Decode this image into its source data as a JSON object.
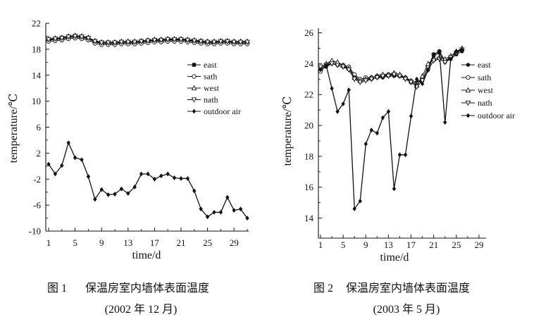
{
  "figures": [
    {
      "caption_label": "图 1",
      "caption_text": "保温房室内墙体表面温度",
      "caption_date": "(2002 年 12 月)"
    },
    {
      "caption_label": "图 2",
      "caption_text": "保温房室内墙体表面温度",
      "caption_date": "(2003 年 5 月)"
    }
  ],
  "chart_data": [
    {
      "type": "line",
      "xlabel": "time/d",
      "ylabel": "temperature/℃",
      "xlim": [
        1,
        31
      ],
      "ylim": [
        -10,
        22
      ],
      "xticks": [
        1,
        5,
        9,
        13,
        17,
        21,
        25,
        29
      ],
      "yticks": [
        22,
        18,
        14,
        10,
        6,
        2,
        -2,
        -6,
        -10
      ],
      "grid": false,
      "legend_position": "right",
      "line_color": "#111111",
      "x": [
        1,
        2,
        3,
        4,
        5,
        6,
        7,
        8,
        9,
        10,
        11,
        12,
        13,
        14,
        15,
        16,
        17,
        18,
        19,
        20,
        21,
        22,
        23,
        24,
        25,
        26,
        27,
        28,
        29,
        30,
        31
      ],
      "series": [
        {
          "name": "east",
          "marker": "square-filled",
          "values": [
            19.4,
            19.5,
            19.6,
            19.8,
            19.9,
            19.8,
            19.6,
            19.1,
            18.9,
            18.9,
            18.9,
            19.0,
            19.0,
            19.0,
            19.1,
            19.2,
            19.3,
            19.3,
            19.4,
            19.4,
            19.4,
            19.3,
            19.2,
            19.1,
            19.0,
            19.0,
            19.1,
            19.1,
            19.0,
            19.0,
            19.0
          ]
        },
        {
          "name": "sath",
          "marker": "circle-open",
          "values": [
            19.2,
            19.3,
            19.4,
            19.6,
            19.7,
            19.6,
            19.4,
            18.9,
            18.7,
            18.7,
            18.7,
            18.8,
            18.8,
            18.8,
            18.9,
            19.0,
            19.1,
            19.1,
            19.2,
            19.2,
            19.2,
            19.1,
            19.0,
            18.9,
            18.8,
            18.8,
            18.9,
            18.9,
            18.8,
            18.8,
            18.8
          ]
        },
        {
          "name": "west",
          "marker": "triangle-up-open",
          "values": [
            19.6,
            19.7,
            19.8,
            20.0,
            20.1,
            20.0,
            19.8,
            19.3,
            19.1,
            19.1,
            19.1,
            19.2,
            19.2,
            19.2,
            19.3,
            19.4,
            19.5,
            19.5,
            19.6,
            19.6,
            19.6,
            19.5,
            19.4,
            19.3,
            19.2,
            19.2,
            19.3,
            19.3,
            19.2,
            19.2,
            19.2
          ]
        },
        {
          "name": "nath",
          "marker": "triangle-down-open",
          "values": [
            19.5,
            19.6,
            19.7,
            19.9,
            20.0,
            19.9,
            19.7,
            19.2,
            19.0,
            19.0,
            19.0,
            19.1,
            19.1,
            19.1,
            19.2,
            19.3,
            19.4,
            19.4,
            19.5,
            19.5,
            19.5,
            19.4,
            19.3,
            19.2,
            19.1,
            19.1,
            19.2,
            19.2,
            19.1,
            19.1,
            19.1
          ]
        },
        {
          "name": "outdoor air",
          "marker": "diamond-filled",
          "values": [
            0.3,
            -1.2,
            0.1,
            3.6,
            1.3,
            1.0,
            -1.6,
            -5.1,
            -3.6,
            -4.4,
            -4.3,
            -3.5,
            -4.2,
            -3.2,
            -1.2,
            -1.2,
            -2.0,
            -1.5,
            -1.2,
            -1.8,
            -1.9,
            -1.9,
            -3.8,
            -6.6,
            -7.8,
            -7.1,
            -7.1,
            -4.8,
            -6.8,
            -6.6,
            -8.0
          ]
        }
      ]
    },
    {
      "type": "line",
      "xlabel": "time/d",
      "ylabel": "temperature/℃",
      "xlim": [
        1,
        30
      ],
      "ylim": [
        12.7,
        26.3
      ],
      "xticks": [
        1,
        5,
        9,
        13,
        17,
        21,
        25,
        29
      ],
      "yticks": [
        26,
        24,
        22,
        20,
        18,
        16,
        14
      ],
      "grid": false,
      "legend_position": "right",
      "line_color": "#111111",
      "x": [
        1,
        2,
        3,
        4,
        5,
        6,
        7,
        8,
        9,
        10,
        11,
        12,
        13,
        14,
        15,
        16,
        17,
        18,
        19,
        20,
        21,
        22,
        23,
        24,
        25,
        26
      ],
      "series": [
        {
          "name": "east",
          "marker": "circle-filled",
          "values": [
            23.6,
            23.8,
            24.0,
            23.9,
            23.8,
            23.7,
            23.2,
            22.9,
            23.0,
            23.0,
            23.1,
            23.1,
            23.2,
            23.2,
            23.2,
            23.1,
            22.9,
            22.8,
            22.9,
            23.6,
            24.5,
            24.7,
            24.1,
            24.3,
            24.6,
            24.8
          ]
        },
        {
          "name": "sath",
          "marker": "circle-open",
          "values": [
            23.5,
            23.9,
            24.1,
            24.0,
            23.9,
            23.8,
            23.3,
            23.0,
            23.1,
            23.1,
            23.2,
            23.2,
            23.3,
            23.3,
            23.2,
            23.1,
            22.8,
            22.7,
            23.0,
            23.8,
            24.6,
            24.8,
            24.2,
            24.4,
            24.7,
            24.9
          ]
        },
        {
          "name": "west",
          "marker": "triangle-up-open",
          "values": [
            23.7,
            24.0,
            24.2,
            24.1,
            23.9,
            23.7,
            23.1,
            22.9,
            23.0,
            23.1,
            23.2,
            23.3,
            23.3,
            23.4,
            23.3,
            23.1,
            22.9,
            22.6,
            23.2,
            24.0,
            24.3,
            24.4,
            24.3,
            24.5,
            24.8,
            25.0
          ]
        },
        {
          "name": "nath",
          "marker": "triangle-down-open",
          "values": [
            23.8,
            23.9,
            24.0,
            23.9,
            23.8,
            23.6,
            23.0,
            22.8,
            22.9,
            23.0,
            23.1,
            23.2,
            23.2,
            23.3,
            23.2,
            23.0,
            22.8,
            22.5,
            22.9,
            23.6,
            24.2,
            24.3,
            24.1,
            24.4,
            24.7,
            24.9
          ]
        },
        {
          "name": "outdoor air",
          "marker": "diamond-filled",
          "values": [
            23.6,
            23.9,
            22.4,
            20.9,
            21.4,
            22.3,
            14.6,
            15.1,
            18.8,
            19.7,
            19.5,
            20.5,
            20.9,
            15.9,
            18.1,
            18.1,
            20.6,
            23.0,
            22.7,
            23.6,
            24.6,
            24.8,
            20.2,
            24.3,
            24.8,
            24.9
          ]
        }
      ]
    }
  ]
}
